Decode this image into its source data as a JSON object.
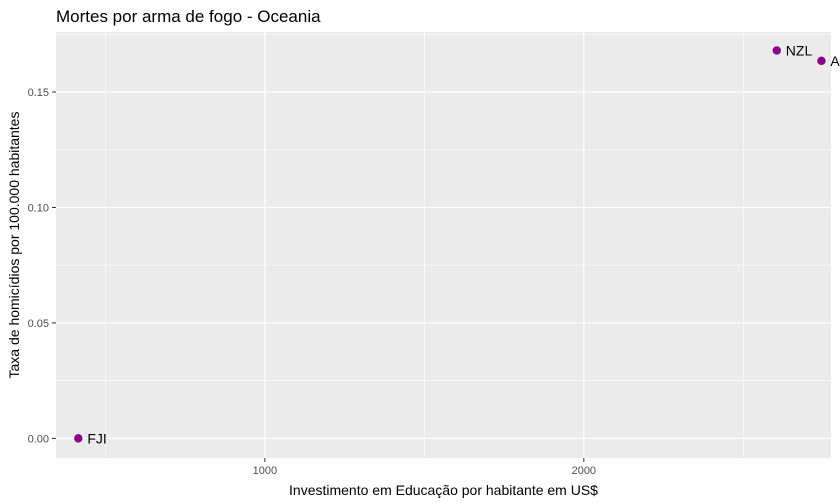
{
  "chart_data": {
    "type": "scatter",
    "title": "Mortes por arma de fogo - Oceania",
    "xlabel": "Investimento em Educação por habitante em US$",
    "ylabel": "Taxa de homicídios por 100.000 habitantes",
    "xlim": [
      345,
      2775
    ],
    "ylim": [
      -0.0085,
      0.176
    ],
    "x_ticks": [
      1000,
      2000
    ],
    "x_tick_labels": [
      "1000",
      "2000"
    ],
    "y_ticks": [
      0.0,
      0.05,
      0.1,
      0.15
    ],
    "y_tick_labels": [
      "0.00",
      "0.05",
      "0.10",
      "0.15"
    ],
    "grid": true,
    "point_color": "#8B008B",
    "panel_color": "#EBEBEB",
    "grid_color": "#FFFFFF",
    "points": [
      {
        "label": "FJI",
        "x": 415,
        "y": 0.0
      },
      {
        "label": "NZL",
        "x": 2605,
        "y": 0.168
      },
      {
        "label": "AUS",
        "x": 2745,
        "y": 0.1635
      }
    ]
  }
}
